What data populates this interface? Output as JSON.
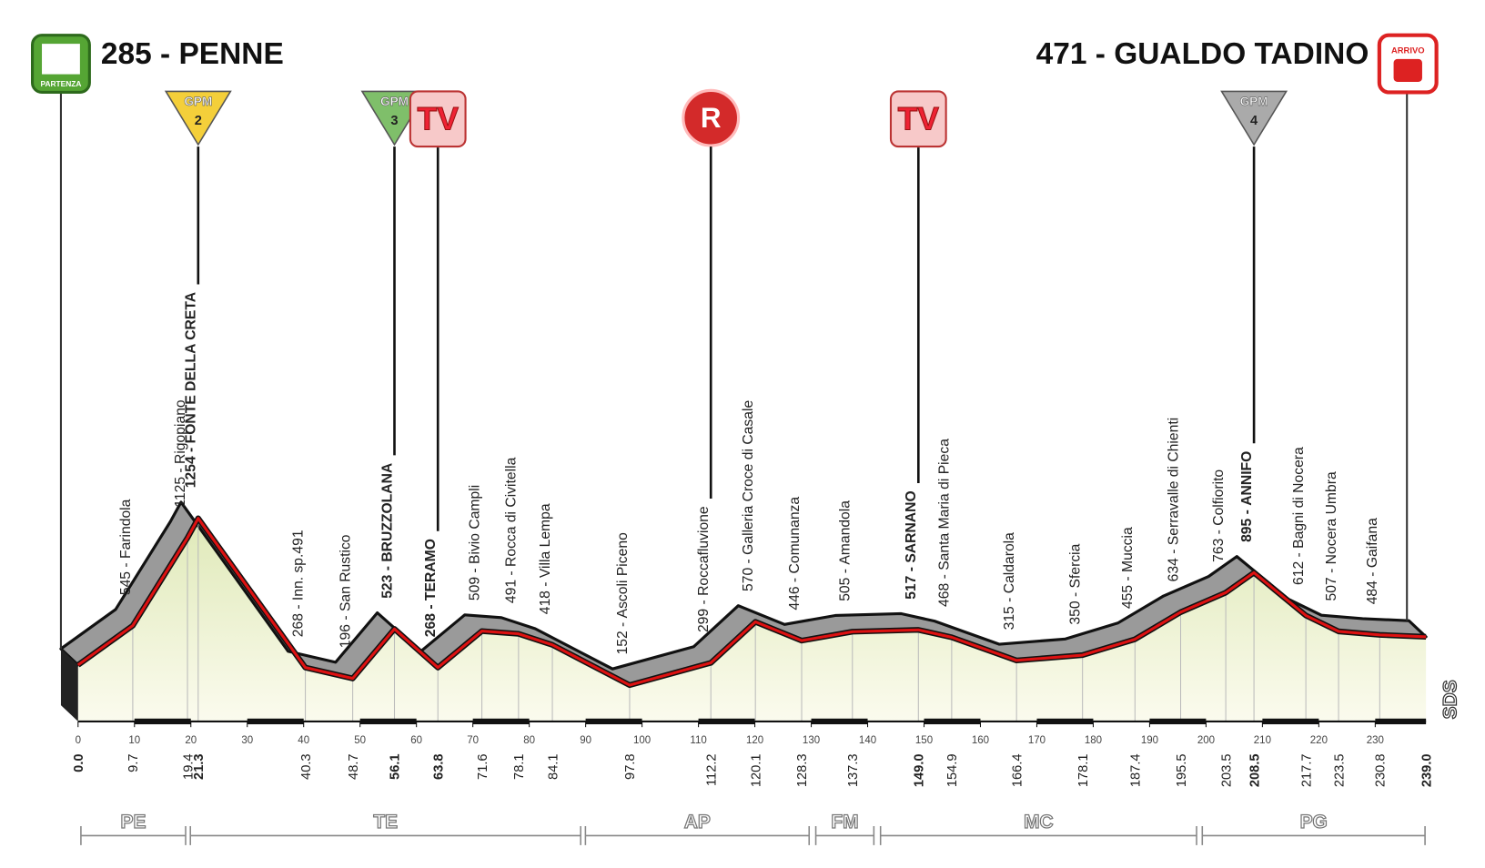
{
  "separator": " - ",
  "start": {
    "elevation": 285,
    "name": "PENNE",
    "km": "0.0",
    "icon": "PARTENZA"
  },
  "finish": {
    "elevation": 471,
    "name": "GUALDO TADINO",
    "km": "239.0",
    "icon": "ARRIVO"
  },
  "waypoints": [
    {
      "elevation": 545,
      "name": "Farindola",
      "km": "9.7"
    },
    {
      "elevation": 1125,
      "name": "Rigopiano",
      "km": "19.4"
    },
    {
      "elevation": 1254,
      "name": "FONTE DELLA CRETA",
      "km": "21.3",
      "major": true,
      "gpm": {
        "label": "GPM",
        "category": 2,
        "color": "#f4cf3a"
      }
    },
    {
      "elevation": 268,
      "name": "Inn. sp.491",
      "km": "40.3"
    },
    {
      "elevation": 196,
      "name": "San Rustico",
      "km": "48.7"
    },
    {
      "elevation": 523,
      "name": "BRUZZOLANA",
      "km": "56.1",
      "major": true,
      "gpm": {
        "label": "GPM",
        "category": 3,
        "color": "#7fbf6a"
      }
    },
    {
      "elevation": 268,
      "name": "TERAMO",
      "km": "63.8",
      "major": true,
      "sign": "TV"
    },
    {
      "elevation": 509,
      "name": "Bivio Campli",
      "km": "71.6"
    },
    {
      "elevation": 491,
      "name": "Rocca di Civitella",
      "km": "78.1"
    },
    {
      "elevation": 418,
      "name": "Villa Lempa",
      "km": "84.1"
    },
    {
      "elevation": 152,
      "name": "Ascoli Piceno",
      "km": "97.8"
    },
    {
      "elevation": 299,
      "name": "Roccafluvione",
      "km": "112.2",
      "sign": "R"
    },
    {
      "elevation": 570,
      "name": "Galleria Croce di Casale",
      "km": "120.1"
    },
    {
      "elevation": 446,
      "name": "Comunanza",
      "km": "128.3"
    },
    {
      "elevation": 505,
      "name": "Amandola",
      "km": "137.3"
    },
    {
      "elevation": 517,
      "name": "SARNANO",
      "km": "149.0",
      "major": true,
      "sign": "TV"
    },
    {
      "elevation": 468,
      "name": "Santa Maria di Pieca",
      "km": "154.9"
    },
    {
      "elevation": 315,
      "name": "Caldarola",
      "km": "166.4"
    },
    {
      "elevation": 350,
      "name": "Sfercia",
      "km": "178.1"
    },
    {
      "elevation": 455,
      "name": "Muccia",
      "km": "187.4"
    },
    {
      "elevation": 634,
      "name": "Serravalle di Chienti",
      "km": "195.5"
    },
    {
      "elevation": 763,
      "name": "Colfiorito",
      "km": "203.5"
    },
    {
      "elevation": 895,
      "name": "ANNIFO",
      "km": "208.5",
      "major": true,
      "gpm": {
        "label": "GPM",
        "category": 4,
        "color": "#aaaaaa"
      }
    },
    {
      "elevation": 612,
      "name": "Bagni di Nocera",
      "km": "217.7"
    },
    {
      "elevation": 507,
      "name": "Nocera Umbra",
      "km": "223.5"
    },
    {
      "elevation": 484,
      "name": "Gaifana",
      "km": "230.8"
    }
  ],
  "km_ticks": [
    0,
    10,
    20,
    30,
    40,
    50,
    60,
    70,
    80,
    90,
    100,
    110,
    120,
    130,
    140,
    150,
    160,
    170,
    180,
    190,
    200,
    210,
    220,
    230
  ],
  "provinces": [
    "PE",
    "TE",
    "AP",
    "FM",
    "MC",
    "PG"
  ],
  "logo": "SDS"
}
